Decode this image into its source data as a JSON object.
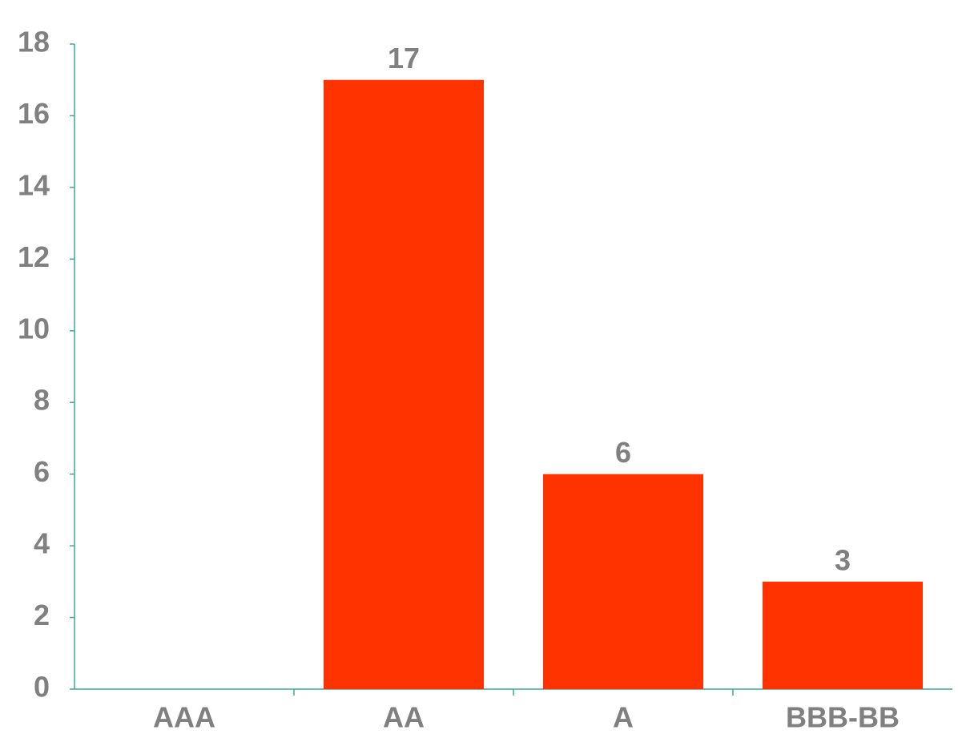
{
  "chart_data": {
    "type": "bar",
    "categories": [
      "AAA",
      "AA",
      "A",
      "BBB-BB"
    ],
    "values": [
      0,
      17,
      6,
      3
    ],
    "color": "#ff3300",
    "ylim": [
      0,
      18
    ],
    "yticks": [
      0,
      2,
      4,
      6,
      8,
      10,
      12,
      14,
      16,
      18
    ],
    "grid": false
  }
}
